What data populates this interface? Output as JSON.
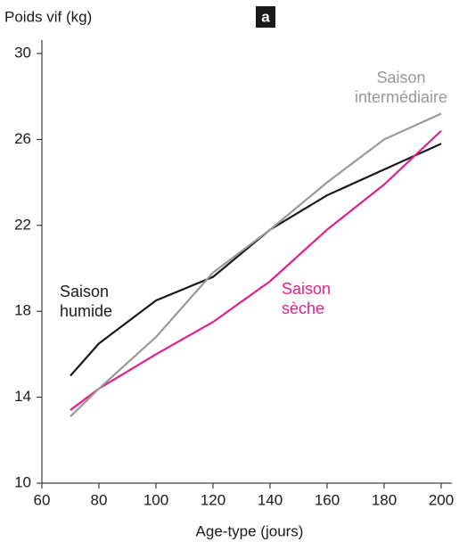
{
  "chart_data": {
    "type": "line",
    "panel_label": "a",
    "ylabel": "Poids vif (kg)",
    "xlabel": "Age-type (jours)",
    "x": [
      70,
      80,
      100,
      120,
      140,
      160,
      180,
      200
    ],
    "series": [
      {
        "name": "Saison humide",
        "color": "#1a1a1a",
        "values": [
          15.0,
          16.5,
          18.5,
          19.6,
          21.8,
          23.4,
          24.6,
          25.8
        ]
      },
      {
        "name": "Saison sèche",
        "color": "#e0218a",
        "values": [
          13.4,
          14.4,
          16.0,
          17.5,
          19.4,
          21.8,
          23.9,
          26.4
        ]
      },
      {
        "name": "Saison intermédiaire",
        "color": "#999999",
        "values": [
          13.1,
          14.4,
          16.8,
          19.8,
          21.8,
          24.0,
          26.0,
          27.2
        ]
      }
    ],
    "xlim": [
      60,
      200
    ],
    "xticks": [
      60,
      80,
      100,
      120,
      140,
      160,
      180,
      200
    ],
    "ylim": [
      10,
      30
    ],
    "yticks": [
      10,
      14,
      18,
      22,
      26,
      30
    ]
  }
}
